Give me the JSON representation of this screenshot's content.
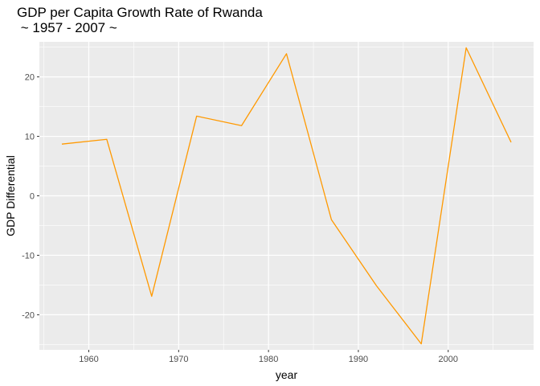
{
  "chart_data": {
    "type": "line",
    "title": "GDP per Capita Growth Rate of Rwanda",
    "subtitle": " ~ 1957 - 2007 ~",
    "xlabel": "year",
    "ylabel": "GDP Differential",
    "xlim": [
      1954.5,
      2009.5
    ],
    "ylim": [
      -25.9,
      25.9
    ],
    "x_ticks": [
      1960,
      1970,
      1980,
      1990,
      2000
    ],
    "y_ticks": [
      -20,
      -10,
      0,
      10,
      20
    ],
    "grid": true,
    "series": [
      {
        "color": "#FF9900",
        "x": [
          1957,
          1962,
          1967,
          1972,
          1977,
          1982,
          1987,
          1992,
          1997,
          2002,
          2007
        ],
        "values": [
          8.7,
          9.5,
          -16.9,
          13.4,
          11.8,
          23.9,
          -4.0,
          -15.1,
          -24.9,
          24.9,
          9.0
        ]
      }
    ]
  }
}
